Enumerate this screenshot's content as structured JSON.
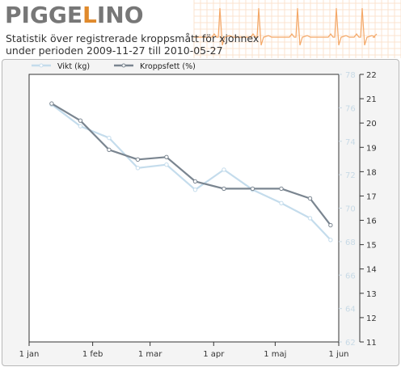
{
  "header": {
    "logo_left": "PIGGE",
    "logo_l": "L",
    "logo_right": "INO",
    "subtitle_line1": "Statistik över registrerade kroppsmått för xjohnex",
    "subtitle_line2": "under perioden 2009-11-27 till 2010-05-27"
  },
  "colors": {
    "weight_series": "#c4dcec",
    "fat_series": "#7a8590",
    "ecg_art": "#f4a868",
    "left_axis_text": "#c8dae6",
    "right_axis_text": "#333333"
  },
  "chart_data": {
    "type": "line",
    "title": "",
    "legend": {
      "placement": "top-left",
      "entries": [
        "Vikt (kg)",
        "Kroppsfett (%)"
      ]
    },
    "grid": false,
    "x_axis": {
      "type": "date",
      "range": [
        "2010-01-01",
        "2010-06-01"
      ],
      "tick_labels": [
        "1 jan",
        "1 feb",
        "1 mar",
        "1 apr",
        "1 maj",
        "1 jun"
      ]
    },
    "y_left": {
      "label": "",
      "range": [
        62,
        78
      ],
      "tick_labels": [
        "78",
        "76",
        "74",
        "72",
        "70",
        "68",
        "66",
        "64",
        "62"
      ]
    },
    "y_right": {
      "label": "",
      "range": [
        11,
        22
      ],
      "tick_labels": [
        "22",
        "21",
        "20",
        "19",
        "18",
        "17",
        "16",
        "15",
        "14",
        "13",
        "12",
        "11"
      ]
    },
    "series": [
      {
        "name": "Vikt (kg)",
        "axis": "left",
        "x": [
          "2010-01-12",
          "2010-01-26",
          "2010-02-09",
          "2010-02-23",
          "2010-03-09",
          "2010-03-23",
          "2010-04-06",
          "2010-04-20",
          "2010-05-04",
          "2010-05-18",
          "2010-05-28"
        ],
        "y": [
          76.2,
          74.9,
          74.2,
          72.4,
          72.6,
          71.1,
          72.3,
          71.1,
          70.3,
          69.4,
          68.1
        ]
      },
      {
        "name": "Kroppsfett (%)",
        "axis": "right",
        "x": [
          "2010-01-12",
          "2010-01-26",
          "2010-02-09",
          "2010-02-23",
          "2010-03-09",
          "2010-03-23",
          "2010-04-06",
          "2010-04-20",
          "2010-05-04",
          "2010-05-18",
          "2010-05-28"
        ],
        "y": [
          20.8,
          20.1,
          18.9,
          18.5,
          18.6,
          17.6,
          17.3,
          17.3,
          17.3,
          16.9,
          15.8
        ]
      }
    ]
  }
}
